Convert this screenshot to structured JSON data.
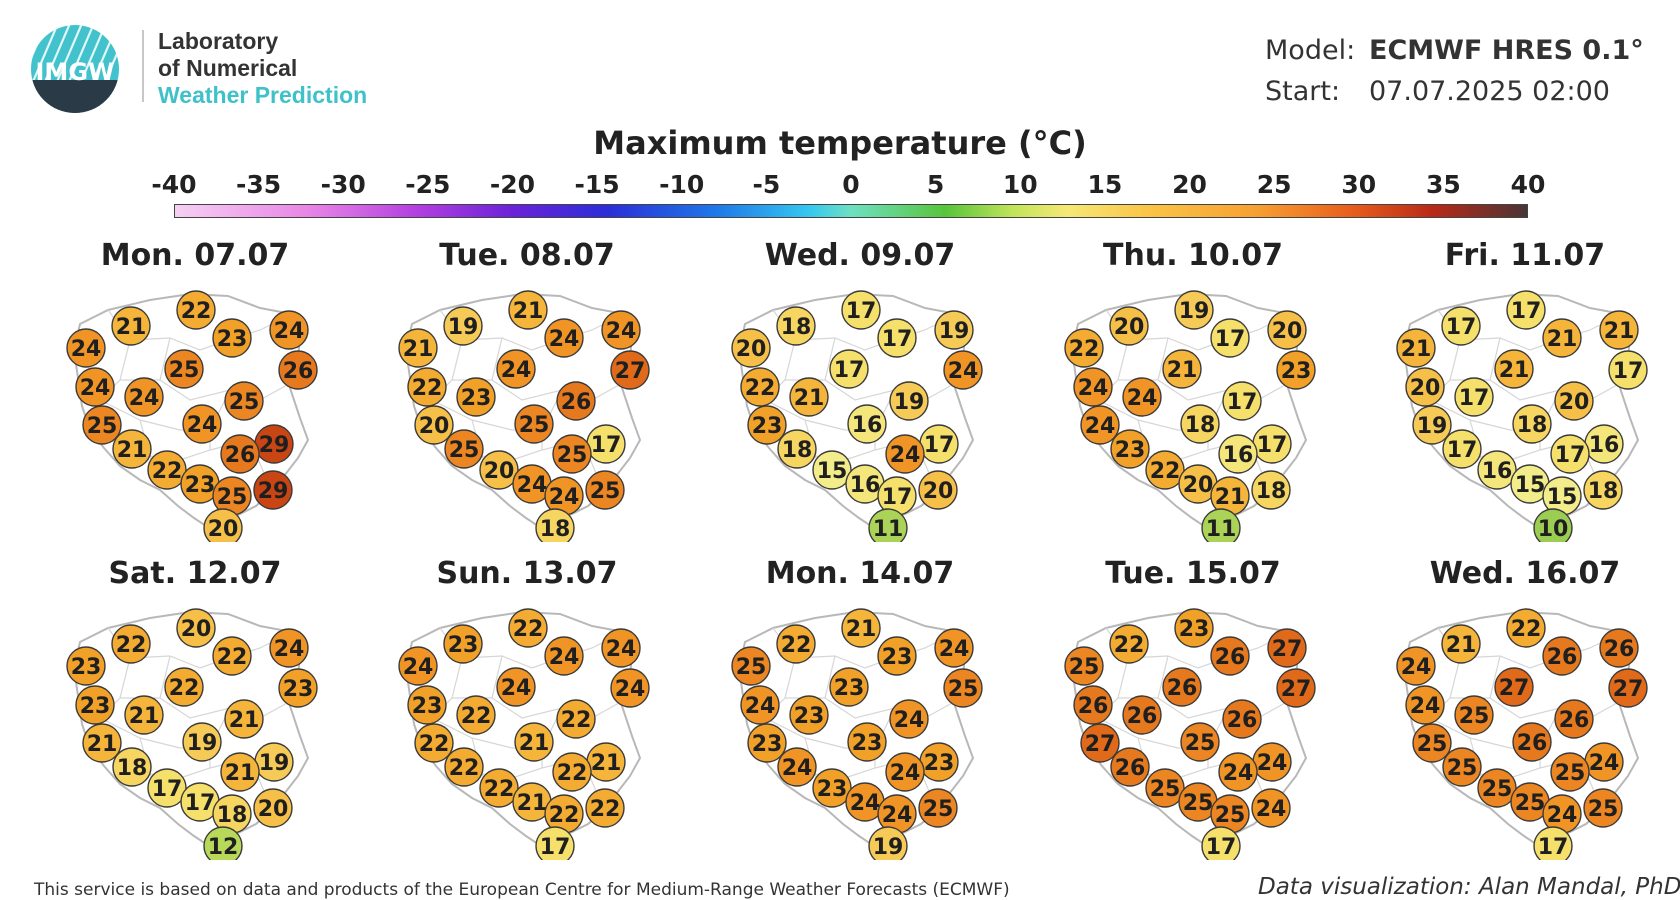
{
  "logo": {
    "mark": "IMGW",
    "line1": "Laboratory",
    "line2": "of Numerical",
    "line3": "Weather Prediction"
  },
  "model": {
    "model_label": "Model:",
    "model_value": "ECMWF HRES 0.1°",
    "start_label": "Start:",
    "start_value": "07.07.2025 02:00"
  },
  "title": "Maximum temperature (°C)",
  "colorbar": {
    "ticks": [
      "-40",
      "-35",
      "-30",
      "-25",
      "-20",
      "-15",
      "-10",
      "-5",
      "0",
      "5",
      "10",
      "15",
      "20",
      "25",
      "30",
      "35",
      "40"
    ],
    "min": -40,
    "max": 40
  },
  "days": [
    {
      "label": "Mon. 07.07",
      "values": [
        22,
        21,
        24,
        24,
        23,
        26,
        25,
        24,
        24,
        25,
        25,
        24,
        29,
        21,
        26,
        22,
        23,
        25,
        29,
        20
      ]
    },
    {
      "label": "Tue. 08.07",
      "values": [
        21,
        19,
        21,
        24,
        24,
        27,
        24,
        22,
        23,
        20,
        26,
        25,
        17,
        25,
        25,
        20,
        24,
        24,
        25,
        18
      ]
    },
    {
      "label": "Wed. 09.07",
      "values": [
        17,
        18,
        20,
        19,
        17,
        24,
        17,
        22,
        21,
        23,
        19,
        16,
        17,
        18,
        24,
        15,
        16,
        17,
        20,
        11
      ]
    },
    {
      "label": "Thu. 10.07",
      "values": [
        19,
        20,
        22,
        20,
        17,
        23,
        21,
        24,
        24,
        24,
        17,
        18,
        17,
        23,
        16,
        22,
        20,
        21,
        18,
        11
      ]
    },
    {
      "label": "Fri. 11.07",
      "values": [
        17,
        17,
        21,
        21,
        21,
        17,
        21,
        20,
        17,
        19,
        20,
        18,
        16,
        17,
        17,
        16,
        15,
        15,
        18,
        10
      ]
    },
    {
      "label": "Sat. 12.07",
      "values": [
        20,
        22,
        23,
        24,
        22,
        23,
        22,
        23,
        21,
        21,
        21,
        19,
        19,
        18,
        21,
        17,
        17,
        18,
        20,
        12
      ]
    },
    {
      "label": "Sun. 13.07",
      "values": [
        22,
        23,
        24,
        24,
        24,
        24,
        24,
        23,
        22,
        22,
        22,
        21,
        21,
        22,
        22,
        22,
        21,
        22,
        22,
        17
      ]
    },
    {
      "label": "Mon. 14.07",
      "values": [
        21,
        22,
        25,
        24,
        23,
        25,
        23,
        24,
        23,
        23,
        24,
        23,
        23,
        24,
        24,
        23,
        24,
        24,
        25,
        19
      ]
    },
    {
      "label": "Tue. 15.07",
      "values": [
        23,
        22,
        25,
        27,
        26,
        27,
        26,
        26,
        26,
        27,
        26,
        25,
        24,
        26,
        24,
        25,
        25,
        25,
        24,
        17
      ]
    },
    {
      "label": "Wed. 16.07",
      "values": [
        22,
        21,
        24,
        26,
        26,
        27,
        27,
        24,
        25,
        25,
        26,
        26,
        24,
        25,
        25,
        25,
        25,
        24,
        25,
        17
      ]
    }
  ],
  "footer": {
    "left": "This service is based on data and products of the European Centre for Medium-Range Weather Forecasts (ECMWF)",
    "right": "Data visualization: Alan Mandal, PhD"
  }
}
